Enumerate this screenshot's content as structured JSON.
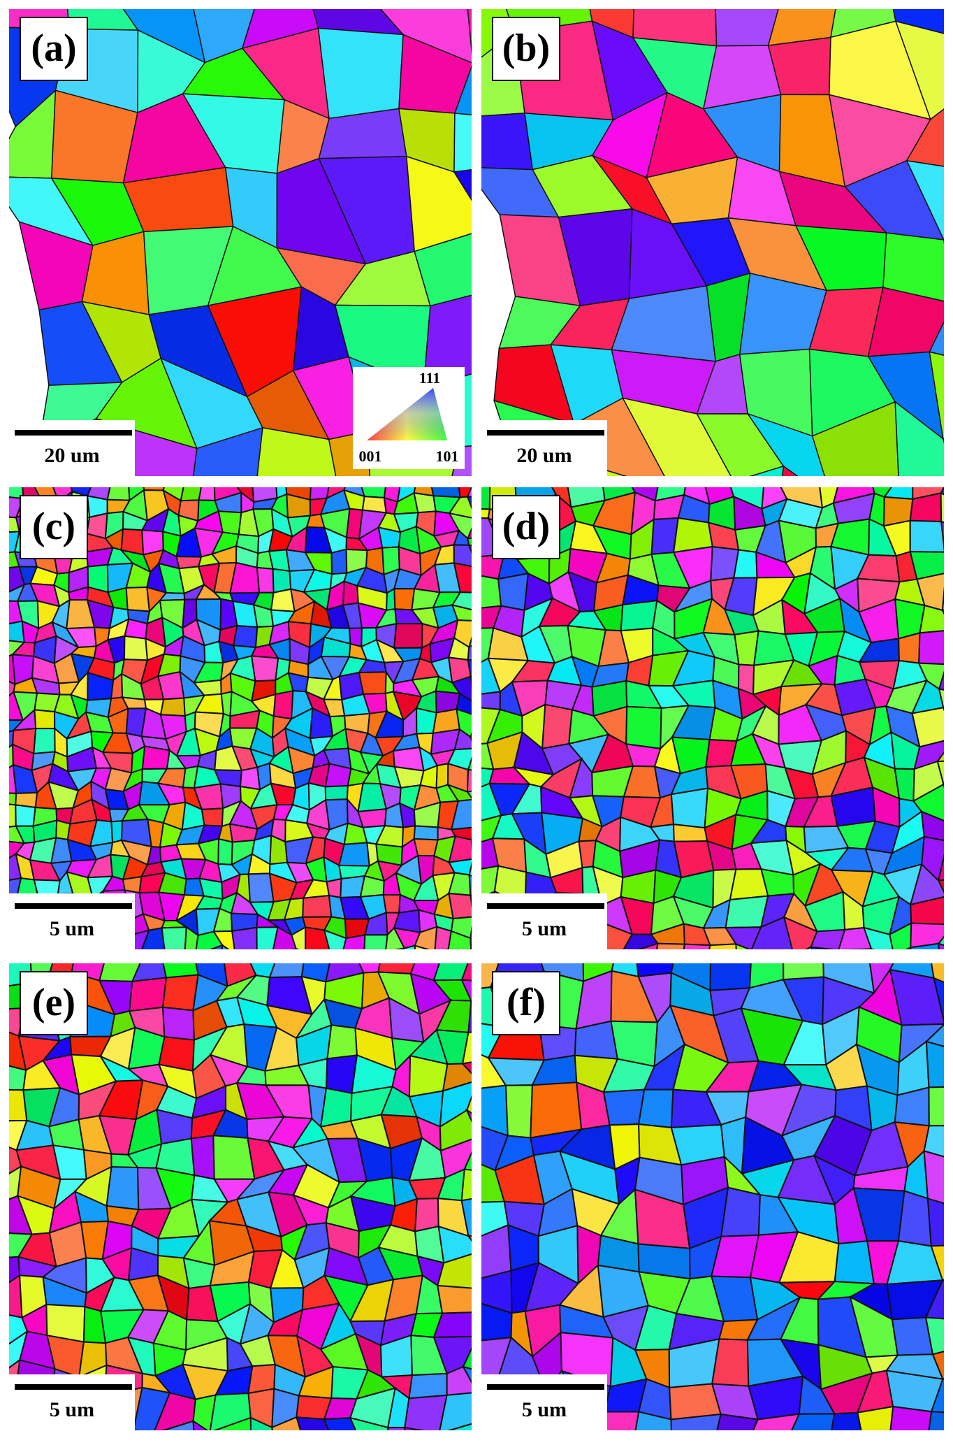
{
  "panels": [
    {
      "label": "(a)",
      "scale_bar": "20 um"
    },
    {
      "label": "(b)",
      "scale_bar": "20 um"
    },
    {
      "label": "(c)",
      "scale_bar": "5 um"
    },
    {
      "label": "(d)",
      "scale_bar": "5 um"
    },
    {
      "label": "(e)",
      "scale_bar": "5 um"
    },
    {
      "label": "(f)",
      "scale_bar": "5 um"
    }
  ],
  "legend": {
    "top": "111",
    "left": "001",
    "right": "101"
  }
}
